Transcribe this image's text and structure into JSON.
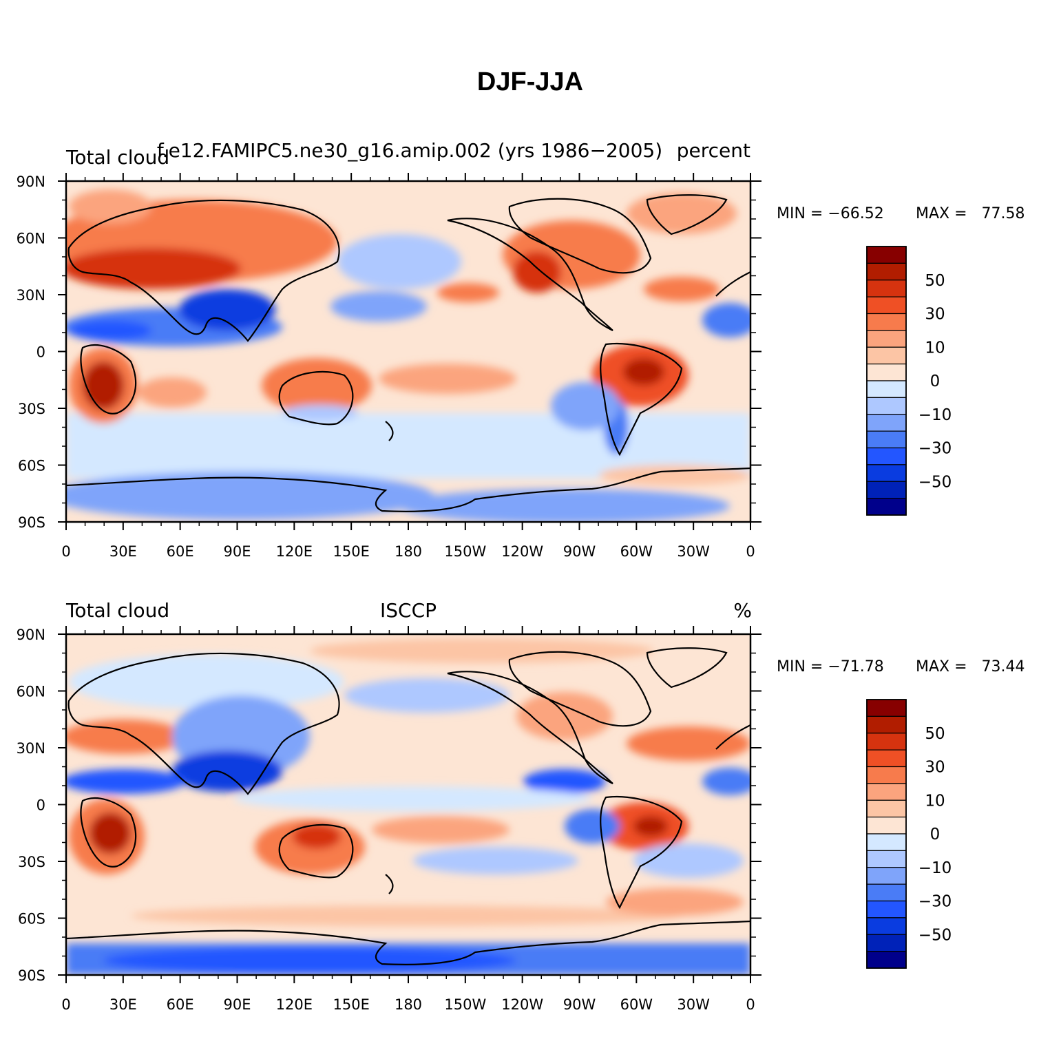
{
  "title": "DJF-JJA",
  "lon_ticks": [
    "0",
    "30E",
    "60E",
    "90E",
    "120E",
    "150E",
    "180",
    "150W",
    "120W",
    "90W",
    "60W",
    "30W",
    "0"
  ],
  "lat_ticks": [
    "90N",
    "60N",
    "30N",
    "0",
    "30S",
    "60S",
    "90S"
  ],
  "colors": {
    "levels": [
      "#00008b",
      "#0022b8",
      "#0a3ce0",
      "#2356ff",
      "#4a7cf6",
      "#7fa4fa",
      "#aec8ff",
      "#d4e8ff",
      "#fde5d4",
      "#fcc5a5",
      "#fba47e",
      "#f77b4c",
      "#ef5025",
      "#d6330f",
      "#b11d00",
      "#870000"
    ],
    "coast": "#000000"
  },
  "panels": [
    {
      "left_label": "Total cloud",
      "center_label": "f.e12.FAMIPC5.ne30_g16.amip.002 (yrs 1986−2005)",
      "right_label": "percent",
      "min_label": "MIN = −66.52",
      "max_label": "MAX =   77.58",
      "min": -66.52,
      "max": 77.58
    },
    {
      "left_label": "Total cloud",
      "center_label": "ISCCP",
      "right_label": "%",
      "min_label": "MIN = −71.78",
      "max_label": "MAX =   73.44",
      "min": -71.78,
      "max": 73.44
    }
  ],
  "colorbar_labels": [
    "50",
    "30",
    "10",
    "0",
    "−10",
    "−30",
    "−50"
  ]
}
